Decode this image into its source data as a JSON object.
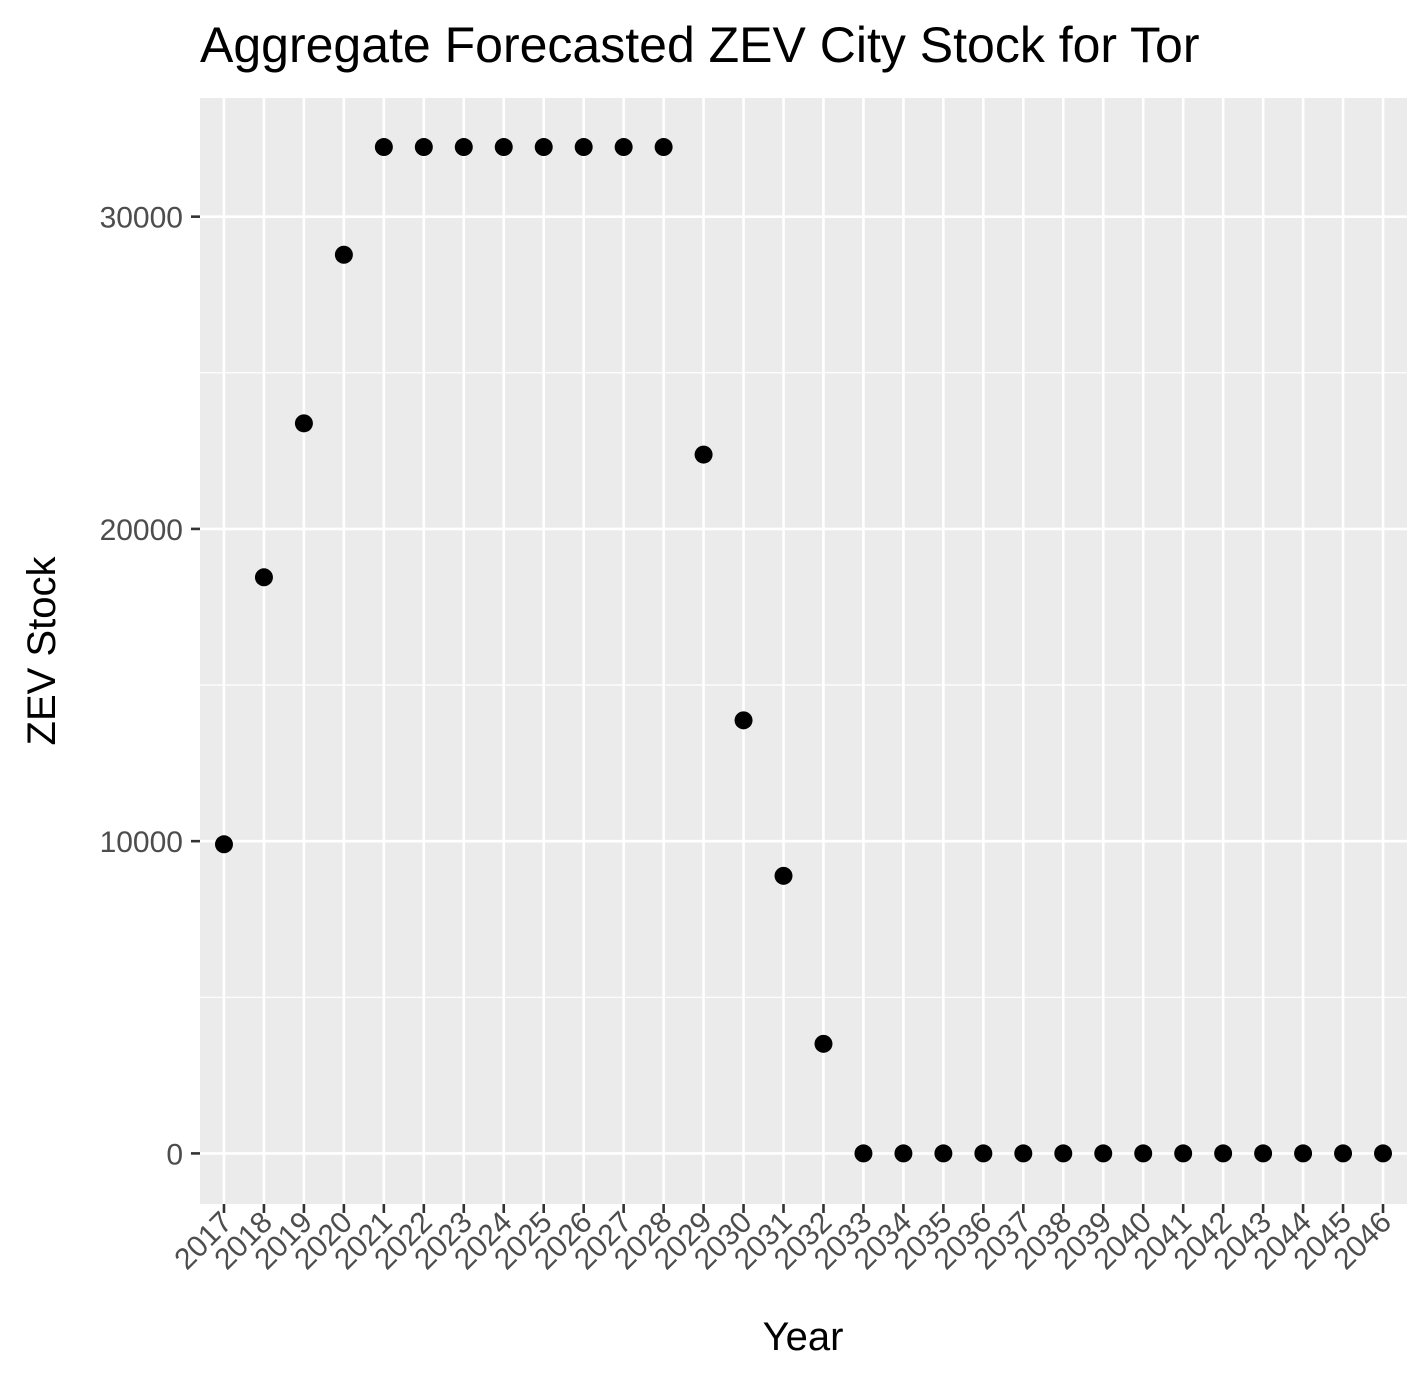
{
  "chart_data": {
    "type": "scatter",
    "title": "Aggregate Forecasted ZEV City Stock for Tor",
    "xlabel": "Year",
    "ylabel": "ZEV Stock",
    "x": [
      "2017",
      "2018",
      "2019",
      "2020",
      "2021",
      "2022",
      "2023",
      "2024",
      "2025",
      "2026",
      "2027",
      "2028",
      "2029",
      "2030",
      "2031",
      "2032",
      "2033",
      "2034",
      "2035",
      "2036",
      "2037",
      "2038",
      "2039",
      "2040",
      "2041",
      "2042",
      "2043",
      "2044",
      "2045",
      "2046"
    ],
    "values": [
      9900,
      18450,
      23380,
      28780,
      32230,
      32230,
      32230,
      32230,
      32230,
      32230,
      32230,
      32230,
      22380,
      13870,
      8890,
      3510,
      0,
      0,
      0,
      0,
      0,
      0,
      0,
      0,
      0,
      0,
      0,
      0,
      0,
      0
    ],
    "ylim": [
      -1620,
      33800
    ],
    "yticks": [
      "0",
      "10000",
      "20000",
      "30000"
    ],
    "grid": true,
    "colors": {
      "panel": "#ebebeb",
      "gridline": "#ffffff",
      "point": "#000000",
      "tick": "#333333"
    }
  }
}
